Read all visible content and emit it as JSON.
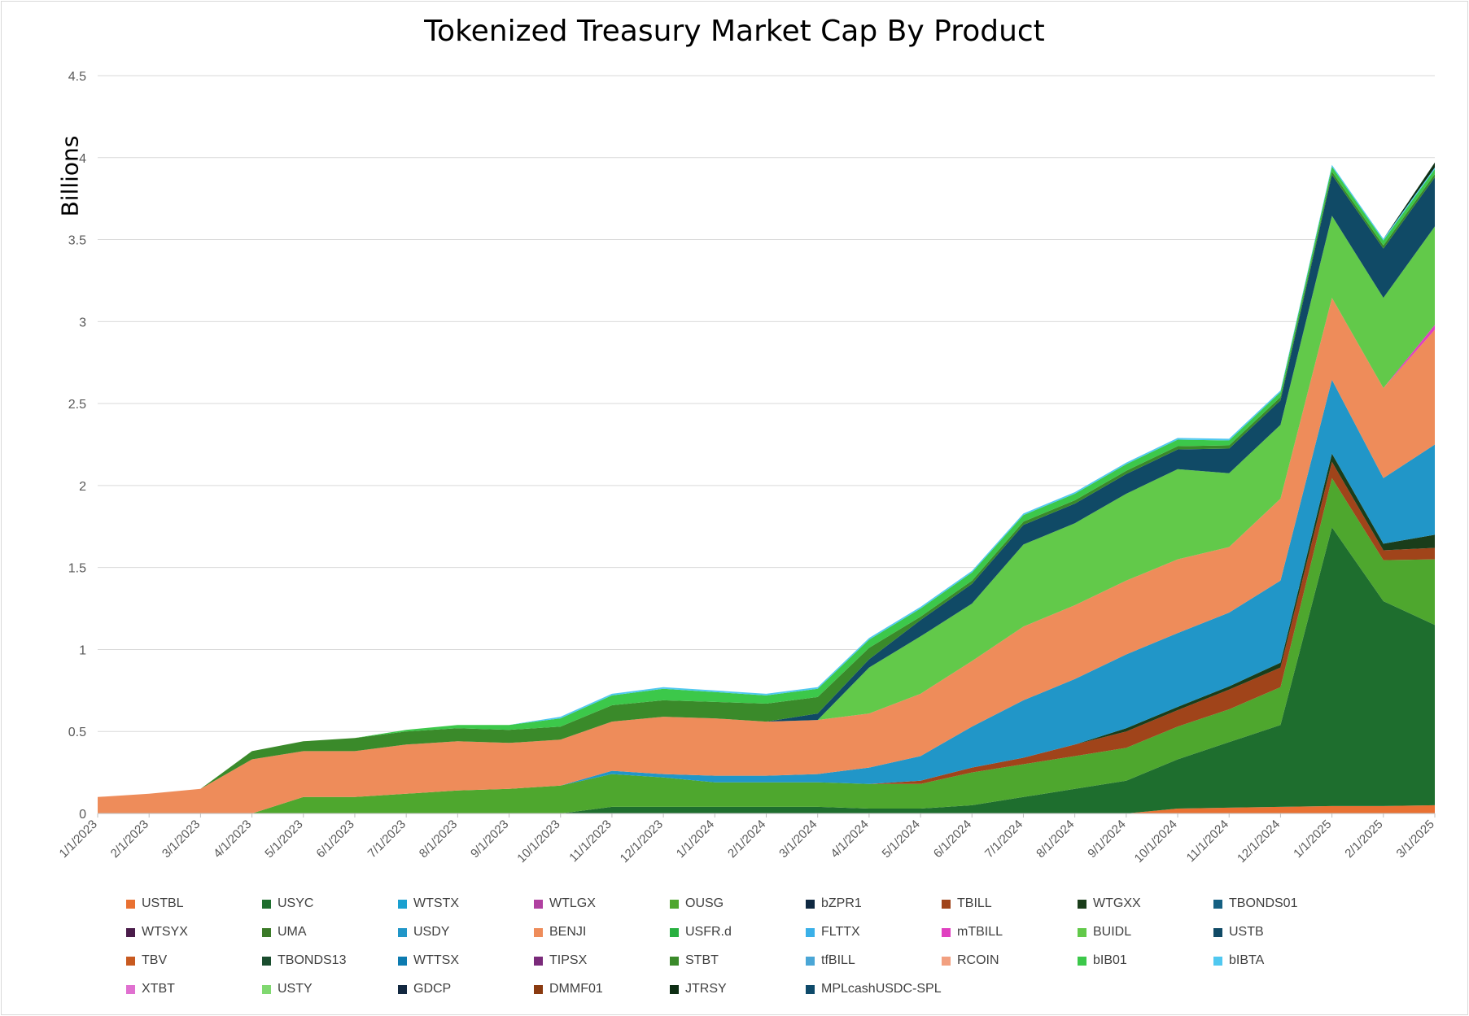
{
  "chart_data": {
    "type": "area",
    "title": "Tokenized Treasury Market Cap By Product",
    "ylabel": "Billions",
    "xlabel": "",
    "ylim": [
      0,
      4.5
    ],
    "yticks": [
      "0",
      "0.5",
      "1",
      "1.5",
      "2",
      "2.5",
      "3",
      "3.5",
      "4",
      "4.5"
    ],
    "x": [
      "1/1/2023",
      "2/1/2023",
      "3/1/2023",
      "4/1/2023",
      "5/1/2023",
      "6/1/2023",
      "7/1/2023",
      "8/1/2023",
      "9/1/2023",
      "10/1/2023",
      "11/1/2023",
      "12/1/2023",
      "1/1/2024",
      "2/1/2024",
      "3/1/2024",
      "4/1/2024",
      "5/1/2024",
      "6/1/2024",
      "7/1/2024",
      "8/1/2024",
      "9/1/2024",
      "10/1/2024",
      "11/1/2024",
      "12/1/2024",
      "1/1/2025",
      "2/1/2025",
      "3/1/2025"
    ],
    "grid": true,
    "legend_position": "bottom",
    "series": [
      {
        "name": "USTBL",
        "color": "#e97132",
        "values": [
          0,
          0,
          0,
          0,
          0,
          0,
          0,
          0,
          0,
          0,
          0,
          0,
          0,
          0,
          0,
          0,
          0,
          0,
          0,
          0,
          0,
          0.03,
          0.035,
          0.04,
          0.045,
          0.045,
          0.05
        ]
      },
      {
        "name": "USYC",
        "color": "#1e6e2e",
        "values": [
          0,
          0,
          0,
          0,
          0,
          0,
          0,
          0,
          0,
          0,
          0.04,
          0.04,
          0.04,
          0.04,
          0.04,
          0.03,
          0.03,
          0.05,
          0.1,
          0.15,
          0.2,
          0.3,
          0.4,
          0.5,
          1.7,
          1.25,
          1.1
        ]
      },
      {
        "name": "WTSTX",
        "color": "#1aa0d0",
        "values": [
          0,
          0,
          0,
          0,
          0,
          0,
          0,
          0,
          0,
          0,
          0,
          0,
          0,
          0,
          0,
          0,
          0,
          0,
          0,
          0,
          0,
          0,
          0,
          0,
          0,
          0,
          0
        ]
      },
      {
        "name": "WTLGX",
        "color": "#b040a0",
        "values": [
          0,
          0,
          0,
          0,
          0,
          0,
          0,
          0,
          0,
          0,
          0,
          0,
          0,
          0,
          0,
          0,
          0,
          0,
          0,
          0,
          0,
          0,
          0,
          0,
          0,
          0,
          0
        ]
      },
      {
        "name": "OUSG",
        "color": "#4ea72e",
        "values": [
          0,
          0,
          0,
          0,
          0.1,
          0.1,
          0.12,
          0.14,
          0.15,
          0.17,
          0.2,
          0.18,
          0.15,
          0.15,
          0.15,
          0.15,
          0.15,
          0.2,
          0.2,
          0.2,
          0.2,
          0.2,
          0.2,
          0.23,
          0.3,
          0.25,
          0.4
        ]
      },
      {
        "name": "bZPR1",
        "color": "#0e2841",
        "values": [
          0,
          0,
          0,
          0,
          0,
          0,
          0,
          0,
          0,
          0,
          0,
          0,
          0,
          0,
          0,
          0,
          0,
          0,
          0,
          0,
          0,
          0,
          0,
          0,
          0,
          0,
          0
        ]
      },
      {
        "name": "TBILL",
        "color": "#a0441a",
        "values": [
          0,
          0,
          0,
          0,
          0,
          0,
          0,
          0,
          0,
          0,
          0,
          0,
          0,
          0,
          0,
          0,
          0.02,
          0.03,
          0.04,
          0.07,
          0.1,
          0.1,
          0.12,
          0.12,
          0.1,
          0.06,
          0.07
        ]
      },
      {
        "name": "WTGXX",
        "color": "#1a3d1a",
        "values": [
          0,
          0,
          0,
          0,
          0,
          0,
          0,
          0,
          0,
          0,
          0,
          0,
          0,
          0,
          0,
          0,
          0,
          0,
          0,
          0,
          0.02,
          0.02,
          0.02,
          0.03,
          0.05,
          0.04,
          0.08
        ]
      },
      {
        "name": "TBONDS01",
        "color": "#156082",
        "values": [
          0,
          0,
          0,
          0,
          0,
          0,
          0,
          0,
          0,
          0,
          0,
          0,
          0,
          0,
          0,
          0,
          0,
          0,
          0,
          0,
          0,
          0,
          0,
          0,
          0,
          0,
          0
        ]
      },
      {
        "name": "WTSYX",
        "color": "#4a1c4a",
        "values": [
          0,
          0,
          0,
          0,
          0,
          0,
          0,
          0,
          0,
          0,
          0,
          0,
          0,
          0,
          0,
          0,
          0,
          0,
          0,
          0,
          0,
          0,
          0,
          0,
          0,
          0,
          0
        ]
      },
      {
        "name": "UMA",
        "color": "#3b7a28",
        "values": [
          0,
          0,
          0,
          0,
          0,
          0,
          0,
          0,
          0,
          0,
          0,
          0,
          0,
          0,
          0,
          0,
          0,
          0,
          0,
          0,
          0,
          0,
          0,
          0,
          0,
          0,
          0
        ]
      },
      {
        "name": "USDY",
        "color": "#2196c8",
        "values": [
          0,
          0,
          0,
          0,
          0,
          0,
          0,
          0,
          0,
          0,
          0.02,
          0.02,
          0.04,
          0.04,
          0.05,
          0.1,
          0.15,
          0.25,
          0.35,
          0.4,
          0.45,
          0.45,
          0.45,
          0.5,
          0.45,
          0.4,
          0.55
        ]
      },
      {
        "name": "BENJI",
        "color": "#ee8c5a",
        "values": [
          0.1,
          0.12,
          0.15,
          0.33,
          0.28,
          0.28,
          0.3,
          0.3,
          0.28,
          0.28,
          0.3,
          0.35,
          0.35,
          0.33,
          0.33,
          0.33,
          0.38,
          0.4,
          0.45,
          0.45,
          0.45,
          0.45,
          0.4,
          0.5,
          0.5,
          0.55,
          0.7
        ]
      },
      {
        "name": "USFR.d",
        "color": "#28b040",
        "values": [
          0,
          0,
          0,
          0,
          0,
          0,
          0,
          0,
          0,
          0,
          0,
          0,
          0,
          0,
          0,
          0,
          0,
          0,
          0,
          0,
          0,
          0,
          0,
          0,
          0,
          0,
          0
        ]
      },
      {
        "name": "FLTTX",
        "color": "#3ab0e8",
        "values": [
          0,
          0,
          0,
          0,
          0,
          0,
          0,
          0,
          0,
          0,
          0,
          0,
          0,
          0,
          0,
          0,
          0,
          0,
          0,
          0,
          0,
          0,
          0,
          0,
          0,
          0,
          0
        ]
      },
      {
        "name": "mTBILL",
        "color": "#e040c0",
        "values": [
          0,
          0,
          0,
          0,
          0,
          0,
          0,
          0,
          0,
          0,
          0,
          0,
          0,
          0,
          0,
          0,
          0,
          0,
          0,
          0,
          0,
          0,
          0,
          0,
          0,
          0,
          0.03
        ]
      },
      {
        "name": "BUIDL",
        "color": "#62c94a",
        "values": [
          0,
          0,
          0,
          0,
          0,
          0,
          0,
          0,
          0,
          0,
          0,
          0,
          0,
          0,
          0,
          0.28,
          0.35,
          0.35,
          0.5,
          0.5,
          0.53,
          0.55,
          0.45,
          0.45,
          0.5,
          0.55,
          0.6
        ]
      },
      {
        "name": "USTB",
        "color": "#104a66",
        "values": [
          0,
          0,
          0,
          0,
          0,
          0,
          0,
          0,
          0,
          0,
          0,
          0,
          0,
          0,
          0.04,
          0.05,
          0.1,
          0.12,
          0.12,
          0.12,
          0.12,
          0.12,
          0.15,
          0.15,
          0.25,
          0.3,
          0.3
        ]
      },
      {
        "name": "TBV",
        "color": "#c85a20",
        "values": [
          0,
          0,
          0,
          0,
          0,
          0,
          0,
          0,
          0,
          0,
          0,
          0,
          0,
          0,
          0,
          0,
          0,
          0,
          0,
          0,
          0,
          0,
          0,
          0,
          0,
          0,
          0
        ]
      },
      {
        "name": "TBONDS13",
        "color": "#1a4d2e",
        "values": [
          0,
          0,
          0,
          0,
          0,
          0,
          0,
          0,
          0,
          0,
          0,
          0,
          0,
          0,
          0,
          0,
          0,
          0,
          0,
          0,
          0,
          0,
          0,
          0,
          0,
          0,
          0
        ]
      },
      {
        "name": "WTTSX",
        "color": "#0d7bb0",
        "values": [
          0,
          0,
          0,
          0,
          0,
          0,
          0,
          0,
          0,
          0,
          0,
          0,
          0,
          0,
          0,
          0,
          0,
          0,
          0,
          0,
          0,
          0,
          0,
          0,
          0,
          0,
          0
        ]
      },
      {
        "name": "TIPSX",
        "color": "#7a2a7a",
        "values": [
          0,
          0,
          0,
          0,
          0,
          0,
          0,
          0,
          0,
          0,
          0,
          0,
          0,
          0,
          0,
          0,
          0,
          0,
          0,
          0,
          0,
          0,
          0,
          0,
          0,
          0,
          0
        ]
      },
      {
        "name": "STBT",
        "color": "#3a8a2a",
        "values": [
          0,
          0,
          0,
          0.05,
          0.06,
          0.08,
          0.08,
          0.08,
          0.08,
          0.08,
          0.1,
          0.1,
          0.1,
          0.11,
          0.1,
          0.07,
          0.02,
          0.02,
          0.02,
          0.02,
          0.02,
          0.02,
          0.02,
          0.02,
          0.02,
          0.02,
          0.02
        ]
      },
      {
        "name": "tfBILL",
        "color": "#4aa6d6",
        "values": [
          0,
          0,
          0,
          0,
          0,
          0,
          0,
          0,
          0,
          0,
          0,
          0,
          0,
          0,
          0,
          0,
          0,
          0,
          0,
          0,
          0,
          0,
          0,
          0,
          0,
          0,
          0
        ]
      },
      {
        "name": "RCOIN",
        "color": "#f2a080",
        "values": [
          0,
          0,
          0,
          0,
          0,
          0,
          0,
          0,
          0,
          0,
          0,
          0,
          0,
          0,
          0,
          0,
          0,
          0,
          0,
          0,
          0,
          0,
          0,
          0,
          0,
          0,
          0
        ]
      },
      {
        "name": "bIB01",
        "color": "#3cc84a",
        "values": [
          0,
          0,
          0,
          0,
          0,
          0,
          0.01,
          0.02,
          0.03,
          0.05,
          0.06,
          0.07,
          0.06,
          0.05,
          0.05,
          0.05,
          0.05,
          0.05,
          0.04,
          0.04,
          0.04,
          0.04,
          0.03,
          0.03,
          0.03,
          0.03,
          0.03
        ]
      },
      {
        "name": "bIBTA",
        "color": "#50c8f0",
        "values": [
          0,
          0,
          0,
          0,
          0,
          0,
          0,
          0,
          0,
          0.01,
          0.01,
          0.01,
          0.01,
          0.01,
          0.01,
          0.01,
          0.01,
          0.01,
          0.01,
          0.01,
          0.01,
          0.01,
          0.01,
          0.01,
          0.01,
          0.01,
          0.01
        ]
      },
      {
        "name": "XTBT",
        "color": "#e070d0",
        "values": [
          0,
          0,
          0,
          0,
          0,
          0,
          0,
          0,
          0,
          0,
          0,
          0,
          0,
          0,
          0,
          0,
          0,
          0,
          0,
          0,
          0,
          0,
          0,
          0,
          0,
          0,
          0
        ]
      },
      {
        "name": "USTY",
        "color": "#80d870",
        "values": [
          0,
          0,
          0,
          0,
          0,
          0,
          0,
          0,
          0,
          0,
          0,
          0,
          0,
          0,
          0,
          0,
          0,
          0,
          0,
          0,
          0,
          0,
          0,
          0,
          0,
          0,
          0
        ]
      },
      {
        "name": "GDCP",
        "color": "#122840",
        "values": [
          0,
          0,
          0,
          0,
          0,
          0,
          0,
          0,
          0,
          0,
          0,
          0,
          0,
          0,
          0,
          0,
          0,
          0,
          0,
          0,
          0,
          0,
          0,
          0,
          0,
          0,
          0
        ]
      },
      {
        "name": "DMMF01",
        "color": "#8a3a10",
        "values": [
          0,
          0,
          0,
          0,
          0,
          0,
          0,
          0,
          0,
          0,
          0,
          0,
          0,
          0,
          0,
          0,
          0,
          0,
          0,
          0,
          0,
          0,
          0,
          0,
          0,
          0,
          0
        ]
      },
      {
        "name": "JTRSY",
        "color": "#0e2e14",
        "values": [
          0,
          0,
          0,
          0,
          0,
          0,
          0,
          0,
          0,
          0,
          0,
          0,
          0,
          0,
          0,
          0,
          0,
          0,
          0,
          0,
          0,
          0,
          0,
          0,
          0,
          0,
          0.03
        ]
      },
      {
        "name": "MPLcashUSDC-SPL",
        "color": "#0e4a6a",
        "values": [
          0,
          0,
          0,
          0,
          0,
          0,
          0,
          0,
          0,
          0,
          0,
          0,
          0,
          0,
          0,
          0,
          0,
          0,
          0,
          0,
          0,
          0,
          0,
          0,
          0,
          0,
          0
        ]
      }
    ]
  }
}
